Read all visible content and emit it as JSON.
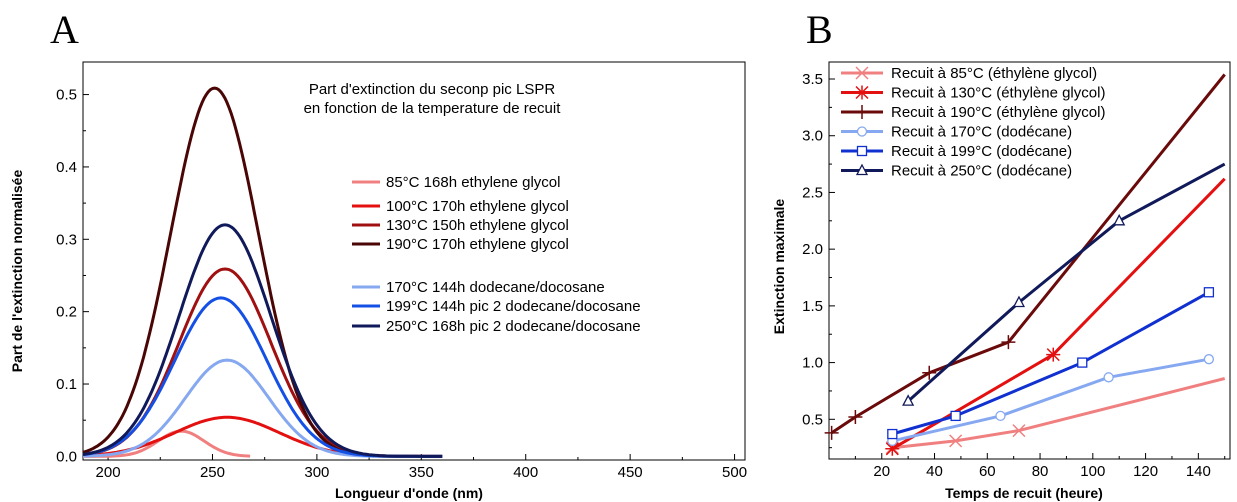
{
  "panels": {
    "a": "A",
    "b": "B"
  },
  "chart_data": [
    {
      "type": "line",
      "title": [
        "Part d'extinction du seconp pic LSPR",
        "en fonction de la temperature de recuit"
      ],
      "xlabel": "Longueur d'onde (nm)",
      "ylabel": "Part de l'extinction normalisée",
      "xlim": [
        188,
        505
      ],
      "ylim": [
        -0.005,
        0.545
      ],
      "xticks": [
        200,
        250,
        300,
        350,
        400,
        450,
        500
      ],
      "yticks": [
        0.0,
        0.1,
        0.2,
        0.3,
        0.4,
        0.5
      ],
      "grid": false,
      "legend_position": "middle-right",
      "series": [
        {
          "name": "85°C 168h ethylene glycol",
          "color": "#f08080",
          "peak": 0.035,
          "center": 235,
          "sigma": 11,
          "xmin": 188,
          "xmax": 268
        },
        {
          "name": "100°C 170h ethylene glycol",
          "color": "#e41010",
          "peak": 0.054,
          "center": 257,
          "sigma": 25,
          "xmin": 188,
          "xmax": 360
        },
        {
          "name": "130°C 150h ethylene glycol",
          "color": "#a01010",
          "peak": 0.259,
          "center": 256,
          "sigma": 22,
          "xmin": 188,
          "xmax": 360
        },
        {
          "name": "190°C 170h ethylene glycol",
          "color": "#4a0505",
          "peak": 0.509,
          "center": 251,
          "sigma": 21,
          "xmin": 188,
          "xmax": 360
        },
        {
          "name": "170°C 144h dodecane/docosane",
          "color": "#86a8f0",
          "peak": 0.133,
          "center": 257,
          "sigma": 20,
          "xmin": 188,
          "xmax": 360
        },
        {
          "name": "199°C 144h pic 2 dodecane/docosane",
          "color": "#1450e6",
          "peak": 0.219,
          "center": 254,
          "sigma": 22,
          "xmin": 188,
          "xmax": 360
        },
        {
          "name": "250°C 168h pic 2 dodecane/docosane",
          "color": "#101a5a",
          "peak": 0.32,
          "center": 256,
          "sigma": 22,
          "xmin": 188,
          "xmax": 360
        }
      ]
    },
    {
      "type": "line",
      "xlabel": "Temps de recuit (heure)",
      "ylabel": "Extinction maximale",
      "xlim": [
        0,
        152
      ],
      "ylim": [
        0.15,
        3.65
      ],
      "xticks": [
        20,
        40,
        60,
        80,
        100,
        120,
        140
      ],
      "yticks": [
        0.5,
        1.0,
        1.5,
        2.0,
        2.5,
        3.0,
        3.5
      ],
      "ytick_labels": [
        "0.5",
        "1.0",
        "1.5",
        "2.0",
        "2.5",
        "3.0",
        "3.5"
      ],
      "grid": false,
      "legend_position": "top-left",
      "series": [
        {
          "name": "Recuit à 85°C   (éthylène glycol)",
          "color": "#f08080",
          "marker": "x",
          "x": [
            24,
            48,
            72,
            150
          ],
          "y": [
            0.25,
            0.31,
            0.4,
            0.86
          ],
          "marked": [
            0,
            1,
            2
          ]
        },
        {
          "name": "Recuit à 130°C (éthylène glycol)",
          "color": "#e41010",
          "marker": "asterisk",
          "x": [
            24,
            85,
            150
          ],
          "y": [
            0.24,
            1.07,
            2.62
          ],
          "marked": [
            0,
            1
          ]
        },
        {
          "name": "Recuit à 190°C (éthylène glycol)",
          "color": "#6a0a0a",
          "marker": "plus",
          "x": [
            1,
            10,
            38,
            68,
            150
          ],
          "y": [
            0.38,
            0.52,
            0.91,
            1.18,
            3.54
          ],
          "marked": [
            0,
            1,
            2,
            3
          ]
        },
        {
          "name": "Recuit à 170°C (dodécane)",
          "color": "#86a8f0",
          "marker": "circle",
          "x": [
            24,
            65,
            106,
            144
          ],
          "y": [
            0.31,
            0.53,
            0.87,
            1.03
          ],
          "marked": [
            0,
            1,
            2,
            3
          ]
        },
        {
          "name": "Recuit à 199°C (dodécane)",
          "color": "#1030d0",
          "marker": "square",
          "x": [
            24,
            48,
            96,
            144
          ],
          "y": [
            0.37,
            0.53,
            1.0,
            1.62
          ],
          "marked": [
            0,
            1,
            2,
            3
          ]
        },
        {
          "name": "Recuit à 250°C (dodécane)",
          "color": "#101a5a",
          "marker": "triangle",
          "x": [
            30,
            72,
            110,
            150
          ],
          "y": [
            0.66,
            1.53,
            2.25,
            2.75
          ],
          "marked": [
            0,
            1,
            2
          ]
        }
      ]
    }
  ]
}
